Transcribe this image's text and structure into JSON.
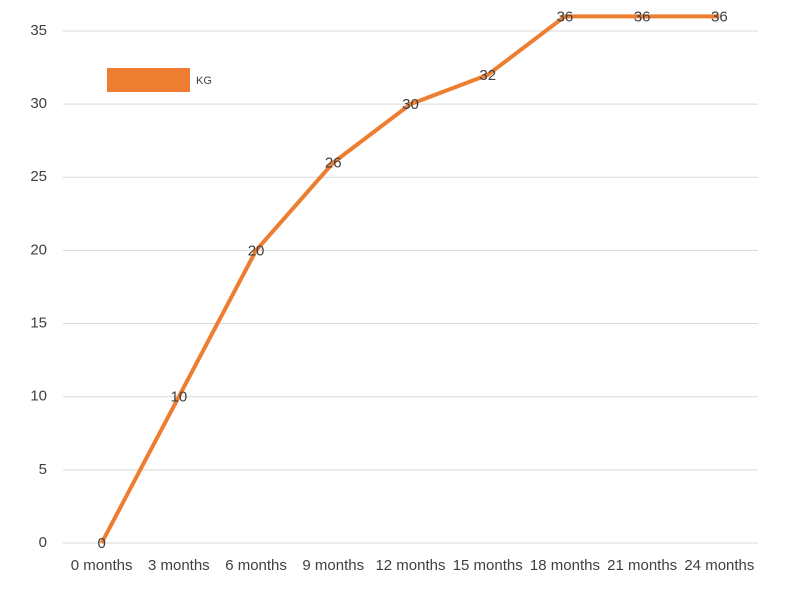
{
  "chart_data": {
    "type": "line",
    "categories": [
      "0 months",
      "3 months",
      "6 months",
      "9 months",
      "12 months",
      "15 months",
      "18 months",
      "21 months",
      "24 months"
    ],
    "series": [
      {
        "name": "KG",
        "color": "#ed7d31",
        "values": [
          0,
          10,
          20,
          26,
          30,
          32,
          36,
          36,
          36
        ]
      }
    ],
    "ylim": [
      0,
      37
    ],
    "yticks": [
      0,
      5,
      10,
      15,
      20,
      25,
      30,
      35
    ],
    "grid": true,
    "legend": "top-left",
    "data_labels": true
  }
}
